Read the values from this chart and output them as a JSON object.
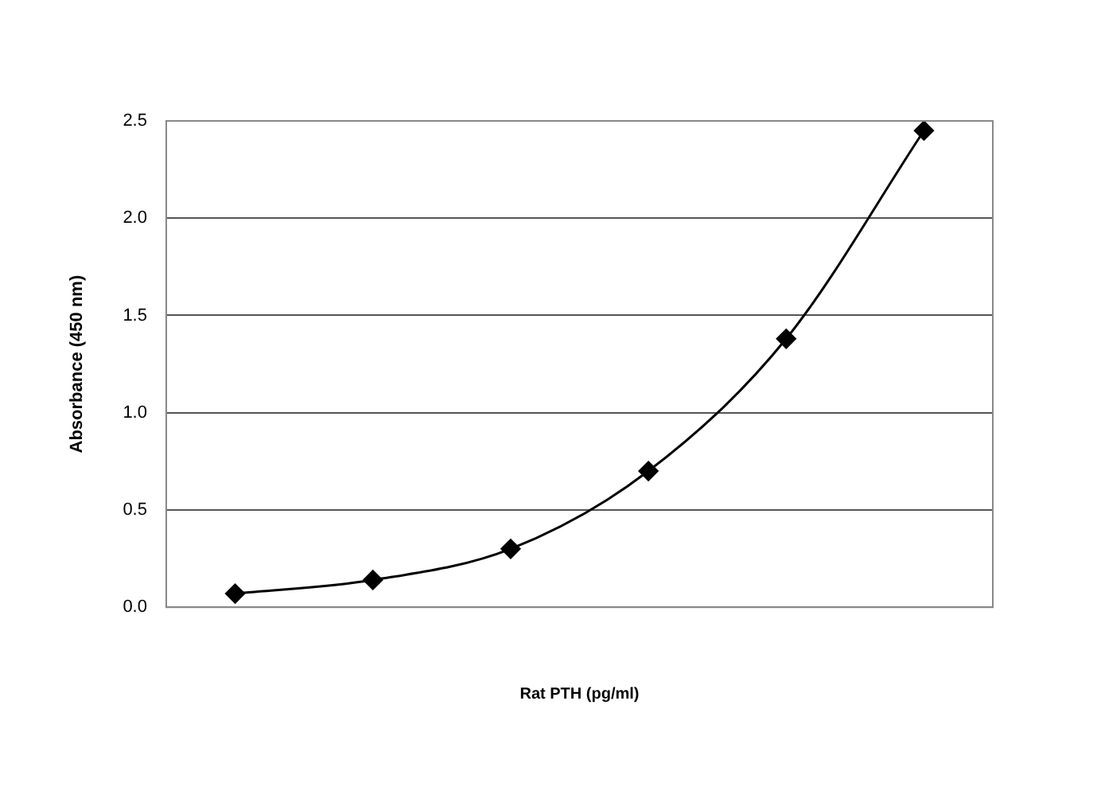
{
  "chart_data": {
    "type": "line",
    "xlabel": "Rat PTH (pg/ml)",
    "ylabel": "Absorbance (450 nm)",
    "categories": [
      null,
      null,
      null,
      null,
      null,
      null
    ],
    "series": [
      {
        "color": "#000000",
        "values": [
          0.07,
          0.14,
          0.3,
          0.7,
          1.38,
          2.45
        ]
      }
    ],
    "ylim": [
      0,
      2.5
    ],
    "yticks": [
      {
        "value": 0,
        "label": "0.0"
      },
      {
        "value": 0.5,
        "label": "0.5"
      },
      {
        "value": 1,
        "label": "1.0"
      },
      {
        "value": 1.5,
        "label": "1.5"
      },
      {
        "value": 2,
        "label": "2.0"
      },
      {
        "value": 2.5,
        "label": "2.5"
      }
    ],
    "grid": "y",
    "legend": false,
    "marker": "diamond",
    "line_style": "solid"
  }
}
